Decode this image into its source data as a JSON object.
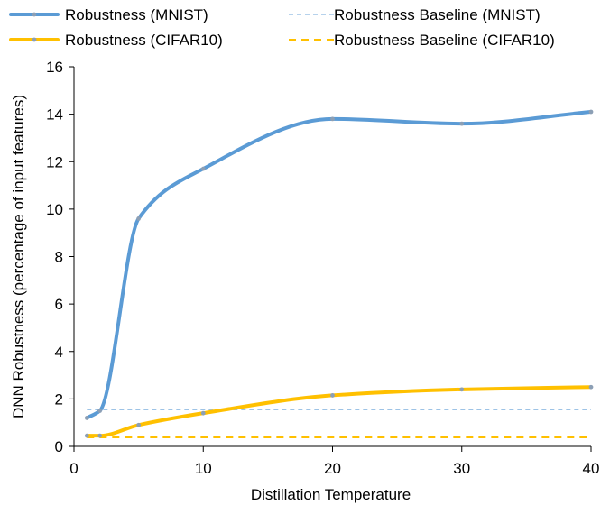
{
  "chart_data": {
    "type": "line",
    "title": "",
    "xlabel": "Distillation Temperature",
    "ylabel": "DNN Robustness (percentage of input features)",
    "xlim": [
      0,
      40
    ],
    "ylim": [
      0,
      16
    ],
    "xticks": [
      "0",
      "10",
      "20",
      "30",
      "40"
    ],
    "yticks": [
      "0",
      "2",
      "4",
      "6",
      "8",
      "10",
      "12",
      "14",
      "16"
    ],
    "grid": false,
    "legend_position": "top",
    "series": [
      {
        "name": "Robustness (MNIST)",
        "style": "solid-markers",
        "color": "#5B9BD5",
        "x": [
          1,
          2,
          5,
          10,
          20,
          30,
          40
        ],
        "values": [
          1.2,
          1.5,
          9.6,
          11.7,
          13.8,
          13.6,
          14.1
        ]
      },
      {
        "name": "Robustness (CIFAR10)",
        "style": "solid-markers",
        "color": "#FFC000",
        "x": [
          1,
          2,
          5,
          10,
          20,
          30,
          40
        ],
        "values": [
          0.45,
          0.45,
          0.9,
          1.4,
          2.15,
          2.4,
          2.5
        ]
      },
      {
        "name": "Robustness Baseline (MNIST)",
        "style": "dashed",
        "color": "#9DC3E6",
        "x": [
          1,
          40
        ],
        "values": [
          1.55,
          1.55
        ]
      },
      {
        "name": "Robustness Baseline (CIFAR10)",
        "style": "dashed",
        "color": "#FFC000",
        "x": [
          1,
          40
        ],
        "values": [
          0.38,
          0.38
        ]
      }
    ]
  }
}
